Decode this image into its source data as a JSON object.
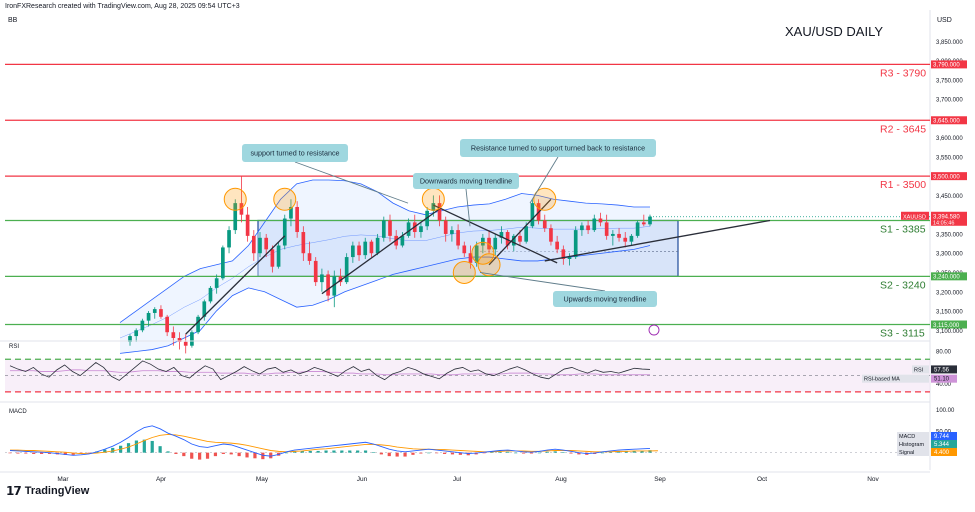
{
  "header": {
    "attribution": "IronFXResearch created with TradingView.com, Aug 28, 2025 09:54 UTC+3",
    "indicator": "BB",
    "currency": "USD",
    "title": "XAU/USD DAILY"
  },
  "footer": {
    "brand": "TradingView"
  },
  "colors": {
    "red_line": "#f23645",
    "green_line": "#4caf50",
    "candle_up": "#089981",
    "candle_down": "#f23645",
    "bb_band": "#2962ff",
    "bb_fill": "#dbe8ff",
    "box_fill": "#c8d9f7",
    "box_border": "#1e4a9a",
    "callout": "#9fd7df",
    "circle": "#ff9800",
    "rsi_line": "#2a2e39",
    "rsi_ma": "#ce93d8",
    "macd": "#2962ff",
    "signal": "#ff9800"
  },
  "chart_data": [
    {
      "type": "candlestick",
      "title": "XAU/USD DAILY",
      "currency": "USD",
      "ylim": [
        3080,
        3900
      ],
      "y_ticks": [
        3850,
        3800,
        3750,
        3700,
        3650,
        3600,
        3550,
        3500,
        3450,
        3400,
        3350,
        3300,
        3250,
        3200,
        3150,
        3100
      ],
      "x_ticks": [
        "Mar",
        "Apr",
        "May",
        "Jun",
        "Jul",
        "Aug",
        "Sep",
        "Oct",
        "Nov"
      ],
      "levels": [
        {
          "name": "R3 - 3790",
          "value": 3790,
          "tag": "3,790.000",
          "kind": "resistance"
        },
        {
          "name": "R2 - 3645",
          "value": 3645,
          "tag": "3,645.000",
          "kind": "resistance"
        },
        {
          "name": "R1 - 3500",
          "value": 3500,
          "tag": "3,500.000",
          "kind": "resistance"
        },
        {
          "name": "S1 - 3385",
          "value": 3385,
          "tag": "3,385.000",
          "kind": "support"
        },
        {
          "name": "S2 - 3240",
          "value": 3240,
          "tag": "3,240.000",
          "kind": "support"
        },
        {
          "name": "S3 - 3115",
          "value": 3115,
          "tag": "3,115.000",
          "kind": "support"
        }
      ],
      "last_price": {
        "symbol": "XAUUSD",
        "price": "3,394.580",
        "countdown": "14:05:46",
        "value": 3394.58
      },
      "range_box": {
        "top": 3385,
        "bottom": 3240
      },
      "candles": [
        {
          "o": 3070,
          "h": 3090,
          "l": 3060,
          "c": 3085
        },
        {
          "o": 3085,
          "h": 3105,
          "l": 3070,
          "c": 3100
        },
        {
          "o": 3100,
          "h": 3130,
          "l": 3095,
          "c": 3125
        },
        {
          "o": 3125,
          "h": 3150,
          "l": 3110,
          "c": 3145
        },
        {
          "o": 3145,
          "h": 3160,
          "l": 3130,
          "c": 3155
        },
        {
          "o": 3155,
          "h": 3165,
          "l": 3130,
          "c": 3135
        },
        {
          "o": 3135,
          "h": 3140,
          "l": 3085,
          "c": 3095
        },
        {
          "o": 3095,
          "h": 3110,
          "l": 3060,
          "c": 3080
        },
        {
          "o": 3080,
          "h": 3095,
          "l": 3050,
          "c": 3070
        },
        {
          "o": 3070,
          "h": 3090,
          "l": 3040,
          "c": 3060
        },
        {
          "o": 3060,
          "h": 3100,
          "l": 3055,
          "c": 3095
        },
        {
          "o": 3095,
          "h": 3140,
          "l": 3090,
          "c": 3135
        },
        {
          "o": 3135,
          "h": 3180,
          "l": 3125,
          "c": 3175
        },
        {
          "o": 3175,
          "h": 3215,
          "l": 3170,
          "c": 3210
        },
        {
          "o": 3210,
          "h": 3245,
          "l": 3195,
          "c": 3235
        },
        {
          "o": 3235,
          "h": 3320,
          "l": 3230,
          "c": 3315
        },
        {
          "o": 3315,
          "h": 3370,
          "l": 3300,
          "c": 3360
        },
        {
          "o": 3360,
          "h": 3440,
          "l": 3350,
          "c": 3430
        },
        {
          "o": 3430,
          "h": 3500,
          "l": 3380,
          "c": 3400
        },
        {
          "o": 3400,
          "h": 3420,
          "l": 3330,
          "c": 3345
        },
        {
          "o": 3345,
          "h": 3360,
          "l": 3280,
          "c": 3300
        },
        {
          "o": 3300,
          "h": 3355,
          "l": 3290,
          "c": 3340
        },
        {
          "o": 3340,
          "h": 3350,
          "l": 3290,
          "c": 3310
        },
        {
          "o": 3310,
          "h": 3320,
          "l": 3250,
          "c": 3265
        },
        {
          "o": 3265,
          "h": 3330,
          "l": 3260,
          "c": 3320
        },
        {
          "o": 3320,
          "h": 3400,
          "l": 3310,
          "c": 3390
        },
        {
          "o": 3390,
          "h": 3440,
          "l": 3370,
          "c": 3420
        },
        {
          "o": 3420,
          "h": 3435,
          "l": 3340,
          "c": 3355
        },
        {
          "o": 3355,
          "h": 3370,
          "l": 3280,
          "c": 3300
        },
        {
          "o": 3300,
          "h": 3330,
          "l": 3270,
          "c": 3280
        },
        {
          "o": 3280,
          "h": 3290,
          "l": 3215,
          "c": 3225
        },
        {
          "o": 3225,
          "h": 3260,
          "l": 3200,
          "c": 3245
        },
        {
          "o": 3245,
          "h": 3255,
          "l": 3175,
          "c": 3190
        },
        {
          "o": 3190,
          "h": 3255,
          "l": 3160,
          "c": 3240
        },
        {
          "o": 3240,
          "h": 3260,
          "l": 3215,
          "c": 3225
        },
        {
          "o": 3225,
          "h": 3300,
          "l": 3220,
          "c": 3290
        },
        {
          "o": 3290,
          "h": 3330,
          "l": 3275,
          "c": 3320
        },
        {
          "o": 3320,
          "h": 3330,
          "l": 3280,
          "c": 3295
        },
        {
          "o": 3295,
          "h": 3340,
          "l": 3285,
          "c": 3330
        },
        {
          "o": 3330,
          "h": 3335,
          "l": 3290,
          "c": 3300
        },
        {
          "o": 3300,
          "h": 3350,
          "l": 3295,
          "c": 3340
        },
        {
          "o": 3340,
          "h": 3395,
          "l": 3330,
          "c": 3385
        },
        {
          "o": 3385,
          "h": 3400,
          "l": 3330,
          "c": 3345
        },
        {
          "o": 3345,
          "h": 3360,
          "l": 3310,
          "c": 3320
        },
        {
          "o": 3320,
          "h": 3355,
          "l": 3315,
          "c": 3345
        },
        {
          "o": 3345,
          "h": 3390,
          "l": 3340,
          "c": 3380
        },
        {
          "o": 3380,
          "h": 3400,
          "l": 3340,
          "c": 3355
        },
        {
          "o": 3355,
          "h": 3380,
          "l": 3340,
          "c": 3370
        },
        {
          "o": 3370,
          "h": 3420,
          "l": 3360,
          "c": 3410
        },
        {
          "o": 3410,
          "h": 3450,
          "l": 3395,
          "c": 3430
        },
        {
          "o": 3430,
          "h": 3450,
          "l": 3370,
          "c": 3385
        },
        {
          "o": 3385,
          "h": 3395,
          "l": 3330,
          "c": 3350
        },
        {
          "o": 3350,
          "h": 3370,
          "l": 3330,
          "c": 3360
        },
        {
          "o": 3360,
          "h": 3375,
          "l": 3310,
          "c": 3320
        },
        {
          "o": 3320,
          "h": 3330,
          "l": 3290,
          "c": 3300
        },
        {
          "o": 3300,
          "h": 3320,
          "l": 3260,
          "c": 3275
        },
        {
          "o": 3275,
          "h": 3330,
          "l": 3265,
          "c": 3320
        },
        {
          "o": 3320,
          "h": 3350,
          "l": 3300,
          "c": 3340
        },
        {
          "o": 3340,
          "h": 3360,
          "l": 3300,
          "c": 3310
        },
        {
          "o": 3310,
          "h": 3350,
          "l": 3295,
          "c": 3340
        },
        {
          "o": 3340,
          "h": 3370,
          "l": 3325,
          "c": 3355
        },
        {
          "o": 3355,
          "h": 3360,
          "l": 3310,
          "c": 3320
        },
        {
          "o": 3320,
          "h": 3350,
          "l": 3305,
          "c": 3345
        },
        {
          "o": 3345,
          "h": 3360,
          "l": 3320,
          "c": 3330
        },
        {
          "o": 3330,
          "h": 3380,
          "l": 3325,
          "c": 3370
        },
        {
          "o": 3370,
          "h": 3440,
          "l": 3365,
          "c": 3430
        },
        {
          "o": 3430,
          "h": 3440,
          "l": 3375,
          "c": 3385
        },
        {
          "o": 3385,
          "h": 3400,
          "l": 3355,
          "c": 3365
        },
        {
          "o": 3365,
          "h": 3375,
          "l": 3320,
          "c": 3330
        },
        {
          "o": 3330,
          "h": 3345,
          "l": 3300,
          "c": 3310
        },
        {
          "o": 3310,
          "h": 3320,
          "l": 3270,
          "c": 3285
        },
        {
          "o": 3285,
          "h": 3300,
          "l": 3268,
          "c": 3290
        },
        {
          "o": 3290,
          "h": 3370,
          "l": 3285,
          "c": 3360
        },
        {
          "o": 3360,
          "h": 3380,
          "l": 3345,
          "c": 3372
        },
        {
          "o": 3372,
          "h": 3385,
          "l": 3350,
          "c": 3360
        },
        {
          "o": 3360,
          "h": 3400,
          "l": 3355,
          "c": 3390
        },
        {
          "o": 3390,
          "h": 3405,
          "l": 3370,
          "c": 3380
        },
        {
          "o": 3380,
          "h": 3400,
          "l": 3335,
          "c": 3345
        },
        {
          "o": 3345,
          "h": 3360,
          "l": 3320,
          "c": 3350
        },
        {
          "o": 3350,
          "h": 3365,
          "l": 3330,
          "c": 3340
        },
        {
          "o": 3340,
          "h": 3355,
          "l": 3315,
          "c": 3330
        },
        {
          "o": 3330,
          "h": 3350,
          "l": 3320,
          "c": 3345
        },
        {
          "o": 3345,
          "h": 3385,
          "l": 3340,
          "c": 3380
        },
        {
          "o": 3380,
          "h": 3400,
          "l": 3370,
          "c": 3375
        },
        {
          "o": 3375,
          "h": 3400,
          "l": 3370,
          "c": 3395
        }
      ],
      "bollinger_upper": [
        3120,
        3150,
        3180,
        3210,
        3240,
        3260,
        3270,
        3280,
        3320,
        3380,
        3440,
        3480,
        3490,
        3490,
        3488,
        3480,
        3460,
        3430,
        3410,
        3400,
        3410,
        3420,
        3425,
        3428,
        3440,
        3455,
        3450,
        3440,
        3435,
        3430,
        3428,
        3425,
        3420,
        3420
      ],
      "bollinger_lower": [
        3040,
        3045,
        3050,
        3060,
        3080,
        3100,
        3150,
        3190,
        3210,
        3200,
        3180,
        3160,
        3165,
        3180,
        3200,
        3215,
        3230,
        3245,
        3255,
        3265,
        3275,
        3285,
        3290,
        3290,
        3285,
        3280,
        3280,
        3285,
        3290,
        3295,
        3300,
        3305,
        3310,
        3320
      ],
      "annotations": [
        {
          "text": "support turned to resistance"
        },
        {
          "text": "Downwards moving trendline"
        },
        {
          "text": "Resistance turned to support turned back to resistance"
        },
        {
          "text": "Upwards moving trendline"
        }
      ]
    },
    {
      "type": "line",
      "name": "RSI",
      "ylim": [
        20,
        90
      ],
      "y_ticks": [
        80,
        40
      ],
      "overbought": 70,
      "oversold": 30,
      "midline": 50,
      "badges": [
        {
          "label": "RSI",
          "value": "57.56"
        },
        {
          "label": "RSI-based MA",
          "value": "51.10"
        }
      ],
      "values": [
        62,
        58,
        55,
        60,
        52,
        48,
        57,
        63,
        55,
        50,
        58,
        66,
        60,
        49,
        44,
        52,
        60,
        68,
        64,
        58,
        55,
        60,
        50,
        47,
        55,
        62,
        58,
        45,
        50,
        55,
        61,
        56,
        52,
        58,
        60,
        54,
        57,
        52,
        55,
        60,
        57,
        53,
        49,
        56,
        61,
        55,
        58,
        50,
        45,
        52,
        55,
        60,
        57,
        52,
        49,
        46,
        53,
        58,
        60,
        55,
        57,
        52,
        50,
        54,
        58,
        61,
        57,
        52,
        48,
        46,
        52,
        58,
        60,
        56,
        53,
        57,
        54,
        55,
        53,
        56,
        59,
        58,
        57.56
      ],
      "ma_values": [
        56,
        56,
        56,
        56,
        55,
        55,
        55,
        56,
        57,
        57,
        56,
        56,
        56,
        55,
        54,
        54,
        55,
        56,
        56,
        56,
        55,
        55,
        55,
        54,
        54,
        54,
        54,
        53,
        53,
        53,
        53,
        52,
        52,
        52,
        53,
        53,
        54,
        54,
        55,
        55,
        55,
        54,
        54,
        53,
        53,
        52,
        52,
        52,
        51,
        51,
        52,
        52,
        52,
        52,
        52,
        51,
        51,
        51,
        52,
        52,
        52,
        52,
        52,
        52,
        53,
        53,
        53,
        53,
        52,
        52,
        51,
        51,
        51,
        52,
        52,
        52,
        51,
        51,
        51,
        51,
        51,
        51,
        51.1
      ]
    },
    {
      "type": "line",
      "name": "MACD",
      "ylim": [
        -40,
        110
      ],
      "y_ticks": [
        100,
        50,
        0
      ],
      "badges": [
        {
          "label": "MACD",
          "value": "9.744"
        },
        {
          "label": "Histogram",
          "value": "5.344"
        },
        {
          "label": "Signal",
          "value": "4.400"
        }
      ],
      "macd": [
        5,
        4,
        3,
        2,
        1,
        0,
        -2,
        -4,
        -6,
        -5,
        -3,
        2,
        8,
        15,
        24,
        35,
        48,
        58,
        62,
        55,
        45,
        38,
        30,
        20,
        14,
        12,
        16,
        20,
        18,
        12,
        6,
        0,
        -6,
        -8,
        -4,
        2,
        6,
        8,
        10,
        12,
        14,
        16,
        18,
        20,
        22,
        24,
        20,
        14,
        8,
        4,
        2,
        4,
        6,
        8,
        6,
        4,
        2,
        0,
        -2,
        -1,
        1,
        3,
        5,
        6,
        4,
        2,
        1,
        3,
        6,
        8,
        6,
        3,
        0,
        -2,
        -1,
        2,
        4,
        6,
        7,
        8,
        9,
        9.744
      ],
      "signal": [
        6,
        6,
        5,
        5,
        4,
        3,
        2,
        1,
        -1,
        -2,
        -2,
        -1,
        1,
        4,
        8,
        13,
        20,
        28,
        35,
        40,
        42,
        41,
        38,
        34,
        30,
        26,
        24,
        23,
        22,
        20,
        17,
        13,
        9,
        5,
        3,
        2,
        3,
        4,
        6,
        8,
        9,
        11,
        13,
        15,
        17,
        19,
        19,
        18,
        16,
        13,
        11,
        9,
        8,
        8,
        7,
        7,
        6,
        5,
        4,
        3,
        2,
        2,
        3,
        4,
        4,
        4,
        3,
        3,
        4,
        5,
        5,
        5,
        4,
        3,
        2,
        2,
        2,
        3,
        3,
        4,
        4,
        4,
        4.4
      ]
    }
  ]
}
